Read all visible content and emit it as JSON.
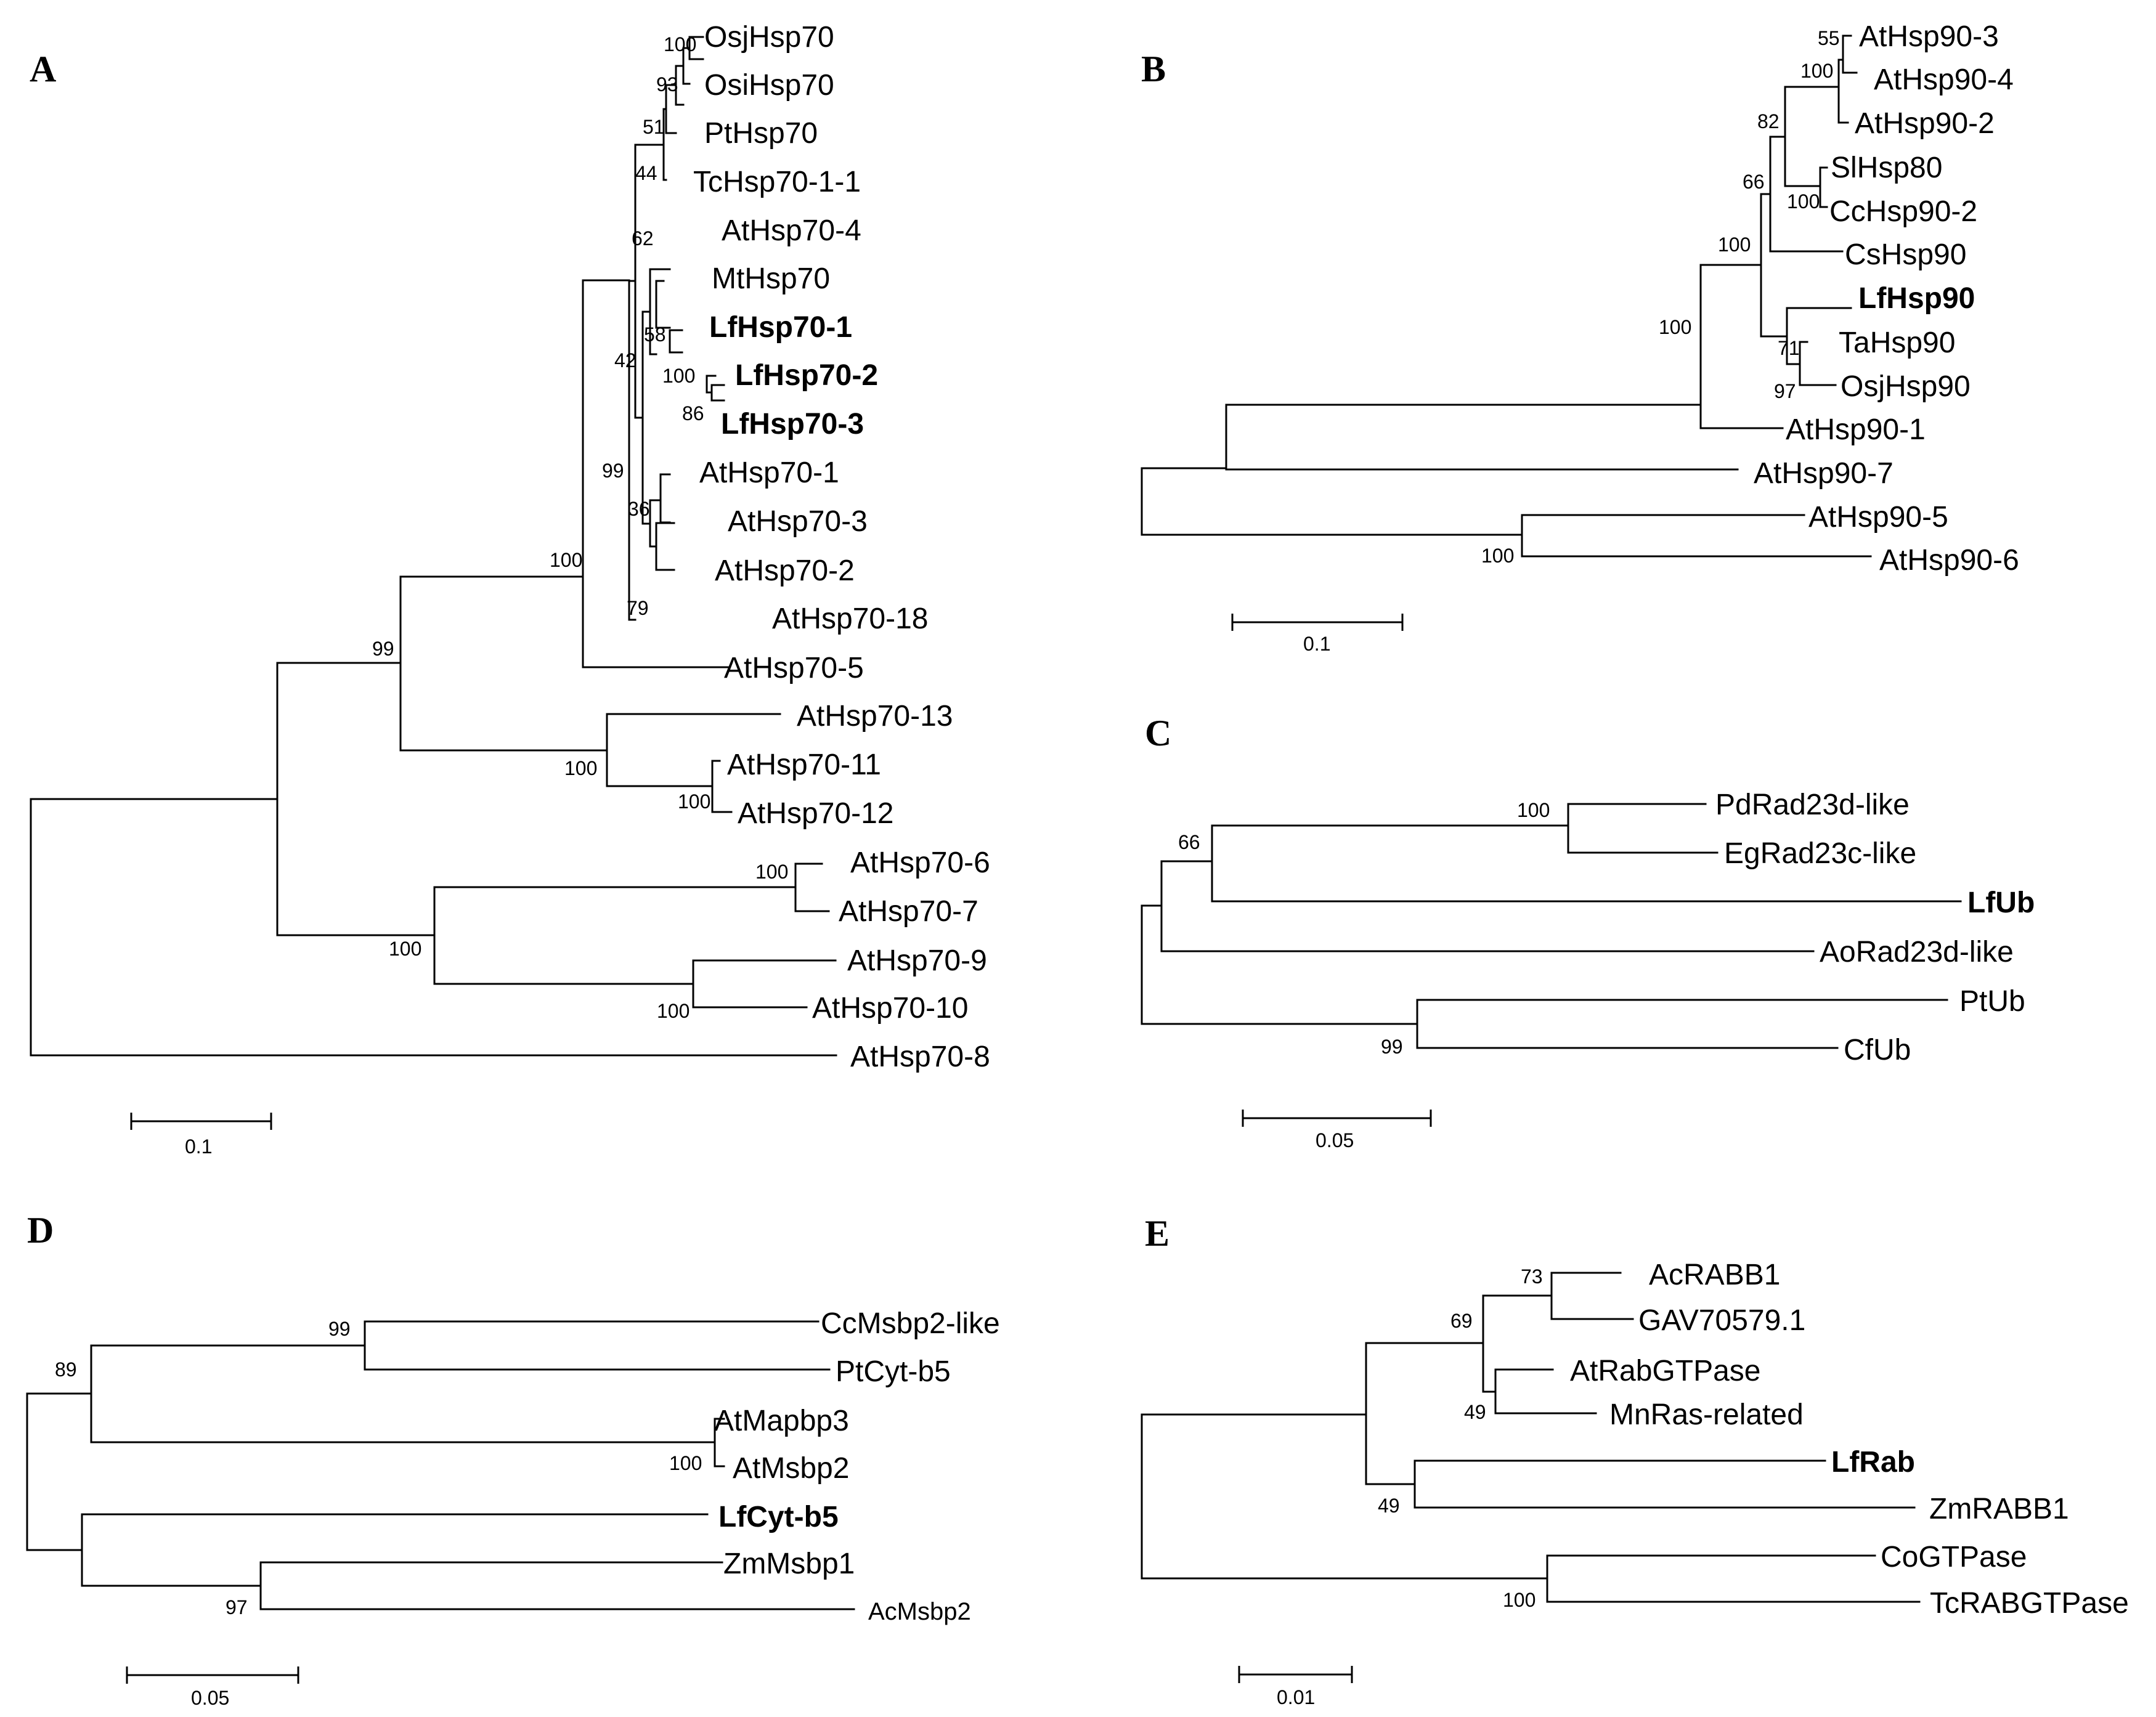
{
  "panels": {
    "A": {
      "letter": "A",
      "leaves": [
        "OsjHsp70",
        "OsiHsp70",
        "PtHsp70",
        "TcHsp70-1-1",
        "AtHsp70-4",
        "MtHsp70",
        "LfHsp70-1",
        "LfHsp70-2",
        "LfHsp70-3",
        "AtHsp70-1",
        "AtHsp70-3",
        "AtHsp70-2",
        "AtHsp70-18",
        "AtHsp70-5",
        "AtHsp70-13",
        "AtHsp70-11",
        "AtHsp70-12",
        "AtHsp70-6",
        "AtHsp70-7",
        "AtHsp70-9",
        "AtHsp70-10",
        "AtHsp70-8"
      ],
      "bootstrap": [
        "100",
        "93",
        "51",
        "44",
        "62",
        "58",
        "100",
        "86",
        "42",
        "99",
        "36",
        "79",
        "100",
        "99",
        "100",
        "100",
        "100",
        "100",
        "100"
      ],
      "scale": "0.1"
    },
    "B": {
      "letter": "B",
      "leaves": [
        "AtHsp90-3",
        "AtHsp90-4",
        "AtHsp90-2",
        "SlHsp80",
        "CcHsp90-2",
        "CsHsp90",
        "LfHsp90",
        "TaHsp90",
        "OsjHsp90",
        "AtHsp90-1",
        "AtHsp90-7",
        "AtHsp90-5",
        "AtHsp90-6"
      ],
      "bootstrap": [
        "55",
        "100",
        "82",
        "100",
        "66",
        "100",
        "71",
        "97",
        "100",
        "100"
      ],
      "scale": "0.1"
    },
    "C": {
      "letter": "C",
      "leaves": [
        "PdRad23d-like",
        "EgRad23c-like",
        "LfUb",
        "AoRad23d-like",
        "PtUb",
        "CfUb"
      ],
      "bootstrap": [
        "100",
        "66",
        "99"
      ],
      "scale": "0.05"
    },
    "D": {
      "letter": "D",
      "leaves": [
        "CcMsbp2-like",
        "PtCyt-b5",
        "AtMapbp3",
        "AtMsbp2",
        "LfCyt-b5",
        "ZmMsbp1",
        "AcMsbp2"
      ],
      "bootstrap": [
        "99",
        "89",
        "100",
        "97"
      ],
      "scale": "0.05"
    },
    "E": {
      "letter": "E",
      "leaves": [
        "AcRABB1",
        "GAV70579.1",
        "AtRabGTPase",
        "MnRas-related",
        "LfRab",
        "ZmRABB1",
        "CoGTPase",
        "TcRABGTPase"
      ],
      "bootstrap": [
        "73",
        "69",
        "49",
        "49",
        "100"
      ],
      "scale": "0.01"
    }
  }
}
